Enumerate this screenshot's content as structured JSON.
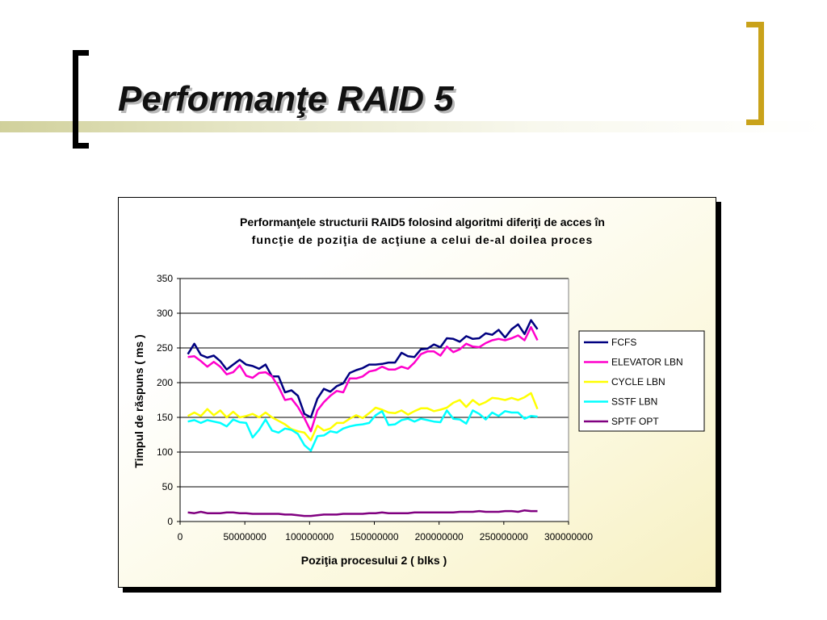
{
  "slide": {
    "title": "Performanţe RAID 5"
  },
  "colors": {
    "bracket_left": "#000000",
    "bracket_right": "#C9A21A",
    "accent_bar": "#CECE96"
  },
  "chart_data": {
    "type": "line",
    "title": "Performanţele structurii RAID5 folosind algoritmi diferiţi de acces în",
    "subtitle": "funcţie de poziţia de acţiune a celui de-al doilea proces",
    "xlabel": "Poziţia procesului 2 ( blks )",
    "ylabel": "Timpul de răspuns ( ms )",
    "xlim": [
      0,
      300000000
    ],
    "ylim": [
      0,
      350
    ],
    "xticks": [
      "0",
      "50000000",
      "100000000",
      "150000000",
      "200000000",
      "250000000",
      "300000000"
    ],
    "yticks": [
      "0",
      "50",
      "100",
      "150",
      "200",
      "250",
      "300",
      "350"
    ],
    "grid": "horizontal",
    "legend_position": "right",
    "x": [
      6000000,
      11000000,
      16000000,
      21000000,
      26000000,
      31000000,
      36000000,
      41000000,
      46000000,
      51000000,
      56000000,
      61000000,
      66000000,
      71000000,
      76000000,
      81000000,
      86000000,
      91000000,
      96000000,
      101000000,
      106000000,
      111000000,
      116000000,
      121000000,
      126000000,
      131000000,
      136000000,
      141000000,
      146000000,
      151000000,
      156000000,
      161000000,
      166000000,
      171000000,
      176000000,
      181000000,
      186000000,
      191000000,
      196000000,
      201000000,
      206000000,
      211000000,
      216000000,
      221000000,
      226000000,
      231000000,
      236000000,
      241000000,
      246000000,
      251000000,
      256000000,
      261000000,
      266000000,
      271000000,
      276000000
    ],
    "series": [
      {
        "name": "FCFS",
        "color": "#000080",
        "values": [
          241,
          256,
          240,
          236,
          239,
          231,
          219,
          226,
          233,
          226,
          224,
          220,
          226,
          209,
          209,
          186,
          189,
          181,
          155,
          150,
          177,
          191,
          187,
          195,
          199,
          214,
          218,
          221,
          226,
          226,
          227,
          229,
          229,
          243,
          238,
          237,
          248,
          249,
          255,
          251,
          264,
          263,
          259,
          267,
          263,
          264,
          271,
          269,
          276,
          265,
          277,
          284,
          270,
          290,
          277
        ]
      },
      {
        "name": "ELEVATOR LBN",
        "color": "#FF00CC",
        "values": [
          237,
          238,
          231,
          223,
          230,
          223,
          212,
          215,
          225,
          210,
          207,
          214,
          215,
          209,
          194,
          175,
          177,
          165,
          149,
          130,
          160,
          172,
          181,
          188,
          186,
          206,
          206,
          209,
          216,
          218,
          223,
          219,
          219,
          223,
          220,
          229,
          241,
          245,
          245,
          239,
          252,
          244,
          248,
          256,
          252,
          251,
          257,
          261,
          263,
          261,
          264,
          268,
          261,
          280,
          261
        ]
      },
      {
        "name": "CYCLE LBN",
        "color": "#FFFF00",
        "values": [
          152,
          157,
          152,
          162,
          153,
          160,
          150,
          158,
          150,
          152,
          155,
          150,
          157,
          150,
          145,
          140,
          133,
          130,
          128,
          117,
          138,
          131,
          134,
          142,
          142,
          148,
          153,
          149,
          156,
          164,
          161,
          157,
          156,
          160,
          154,
          159,
          163,
          163,
          159,
          161,
          164,
          171,
          175,
          165,
          175,
          168,
          172,
          178,
          177,
          175,
          178,
          175,
          179,
          185,
          162
        ]
      },
      {
        "name": "SSTF LBN",
        "color": "#00FFFF",
        "values": [
          144,
          146,
          142,
          146,
          144,
          142,
          137,
          147,
          143,
          142,
          121,
          132,
          147,
          131,
          128,
          134,
          132,
          126,
          110,
          102,
          123,
          124,
          130,
          128,
          134,
          137,
          139,
          140,
          142,
          153,
          159,
          139,
          140,
          146,
          148,
          144,
          148,
          146,
          144,
          143,
          160,
          148,
          147,
          141,
          160,
          155,
          147,
          157,
          152,
          159,
          157,
          157,
          148,
          152,
          151
        ]
      },
      {
        "name": "SPTF OPT",
        "color": "#800080",
        "values": [
          13,
          12,
          14,
          12,
          12,
          12,
          13,
          13,
          12,
          12,
          11,
          11,
          11,
          11,
          11,
          10,
          10,
          9,
          8,
          8,
          9,
          10,
          10,
          10,
          11,
          11,
          11,
          11,
          12,
          12,
          13,
          12,
          12,
          12,
          12,
          13,
          13,
          13,
          13,
          13,
          13,
          13,
          14,
          14,
          14,
          15,
          14,
          14,
          14,
          15,
          15,
          14,
          16,
          15,
          15
        ]
      }
    ]
  }
}
